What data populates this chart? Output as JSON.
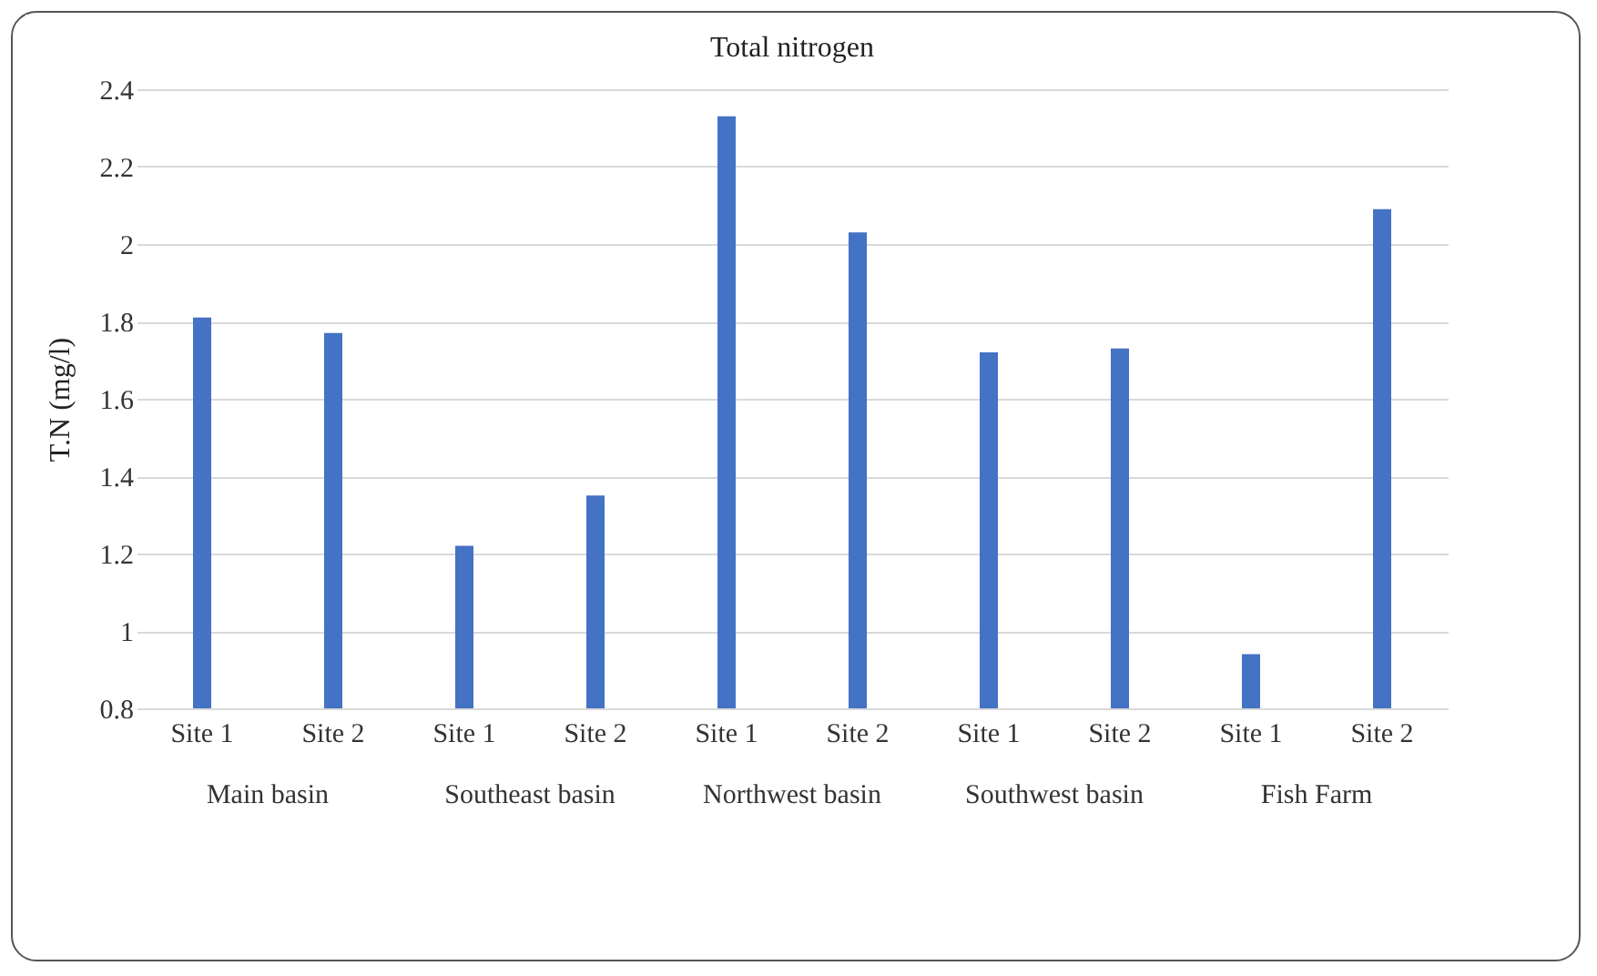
{
  "chart_data": {
    "type": "bar",
    "title": "Total nitrogen",
    "ylabel": "T.N (mg/l)",
    "categories": [
      "Site 1",
      "Site 2",
      "Site 1",
      "Site 2",
      "Site 1",
      "Site 2",
      "Site 1",
      "Site 2",
      "Site 1",
      "Site 2"
    ],
    "values": [
      1.81,
      1.77,
      1.22,
      1.35,
      2.33,
      2.03,
      1.72,
      1.73,
      0.94,
      2.09
    ],
    "color": "#4472c4",
    "annotations": [
      "Main basin",
      "Southeast basin",
      "Northwest basin",
      "Southwest basin",
      "Fish Farm"
    ],
    "ylim": [
      0.8,
      2.4
    ],
    "yticks": [
      0.8,
      1,
      1.2,
      1.4,
      1.6,
      1.8,
      2,
      2.2,
      2.4
    ],
    "grid": "y"
  }
}
